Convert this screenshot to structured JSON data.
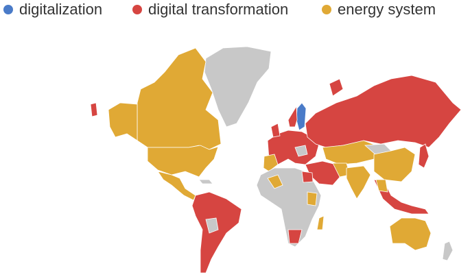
{
  "legend": [
    {
      "label": "digitalization",
      "color": "#4a7bc8"
    },
    {
      "label": "digital transformation",
      "color": "#d64541"
    },
    {
      "label": "energy system",
      "color": "#e0a935"
    }
  ]
}
